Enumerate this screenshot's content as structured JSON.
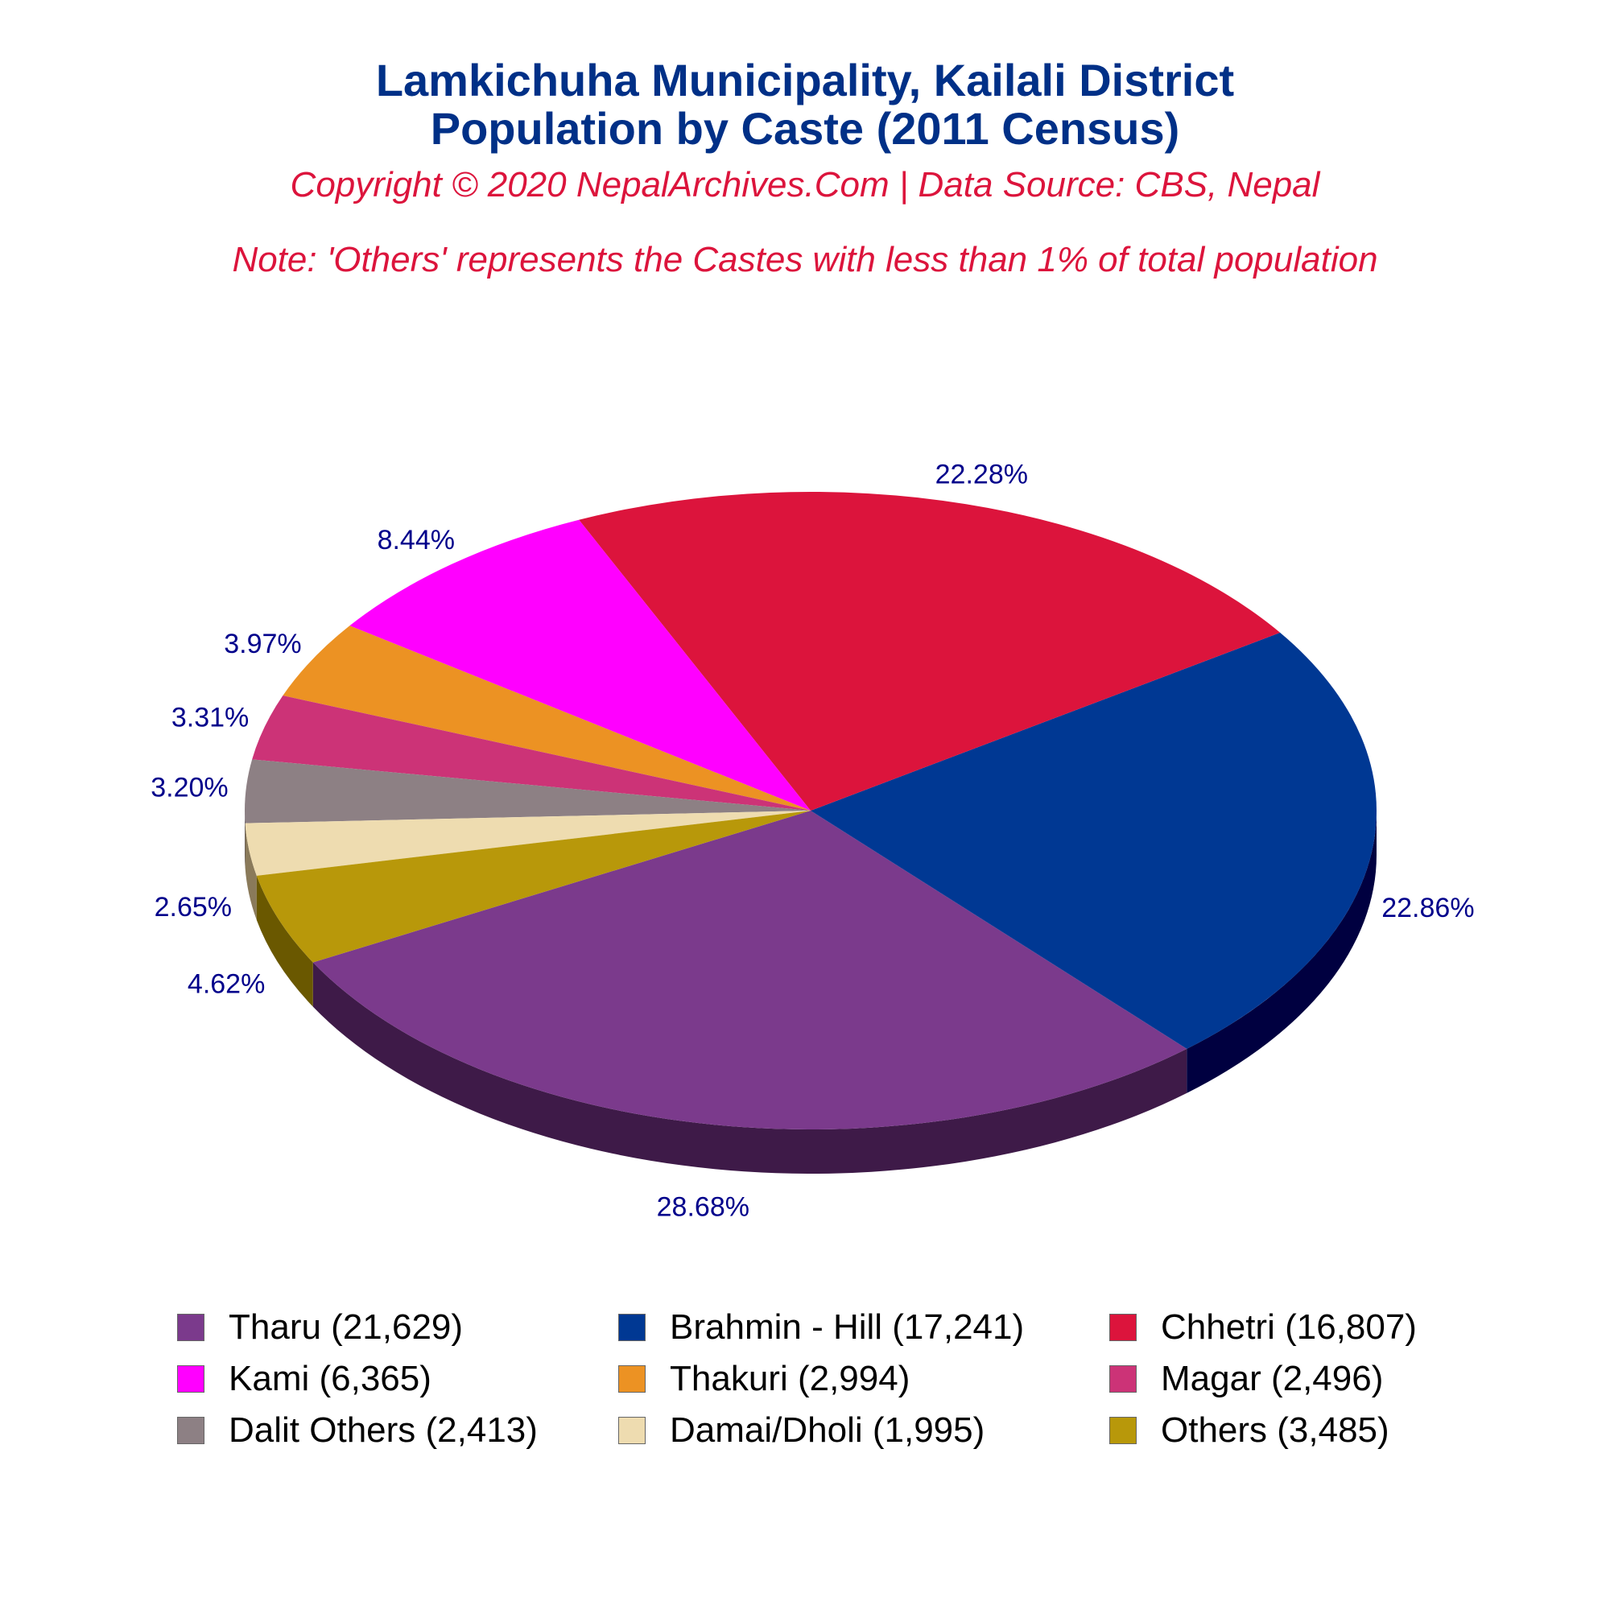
{
  "title_line1": "Lamkichuha Municipality, Kailali District",
  "title_line2": "Population by Caste (2011 Census)",
  "copyright": "Copyright © 2020 NepalArchives.Com | Data Source: CBS, Nepal",
  "note": "Note: 'Others' represents the Castes with less than 1% of total population",
  "chart_data": {
    "type": "pie",
    "style": "3d",
    "categories": [
      "Tharu",
      "Brahmin - Hill",
      "Chhetri",
      "Kami",
      "Thakuri",
      "Magar",
      "Dalit Others",
      "Damai/Dholi",
      "Others"
    ],
    "values": [
      21629,
      17241,
      16807,
      6365,
      2994,
      2496,
      2413,
      1995,
      3485
    ],
    "percent_labels": [
      "28.68%",
      "22.86%",
      "22.28%",
      "8.44%",
      "3.97%",
      "3.31%",
      "3.20%",
      "2.65%",
      "4.62%"
    ],
    "legend_labels": [
      "Tharu (21,629)",
      "Brahmin - Hill (17,241)",
      "Chhetri (16,807)",
      "Kami (6,365)",
      "Thakuri (2,994)",
      "Magar (2,496)",
      "Dalit Others (2,413)",
      "Damai/Dholi (1,995)",
      "Others (3,485)"
    ],
    "colors": [
      "#7B3A8C",
      "#003893",
      "#DC143C",
      "#FF00FF",
      "#EC9223",
      "#CC3377",
      "#8D8084",
      "#EEDCB0",
      "#B8980A"
    ],
    "side_colors": [
      "#3E1A48",
      "#000040",
      "#880000",
      "#AA00AA",
      "#8F3300",
      "#7A0030",
      "#4A4046",
      "#8A7A5A",
      "#6A5800"
    ],
    "legend_position": "bottom",
    "label_color": "#00008B"
  }
}
